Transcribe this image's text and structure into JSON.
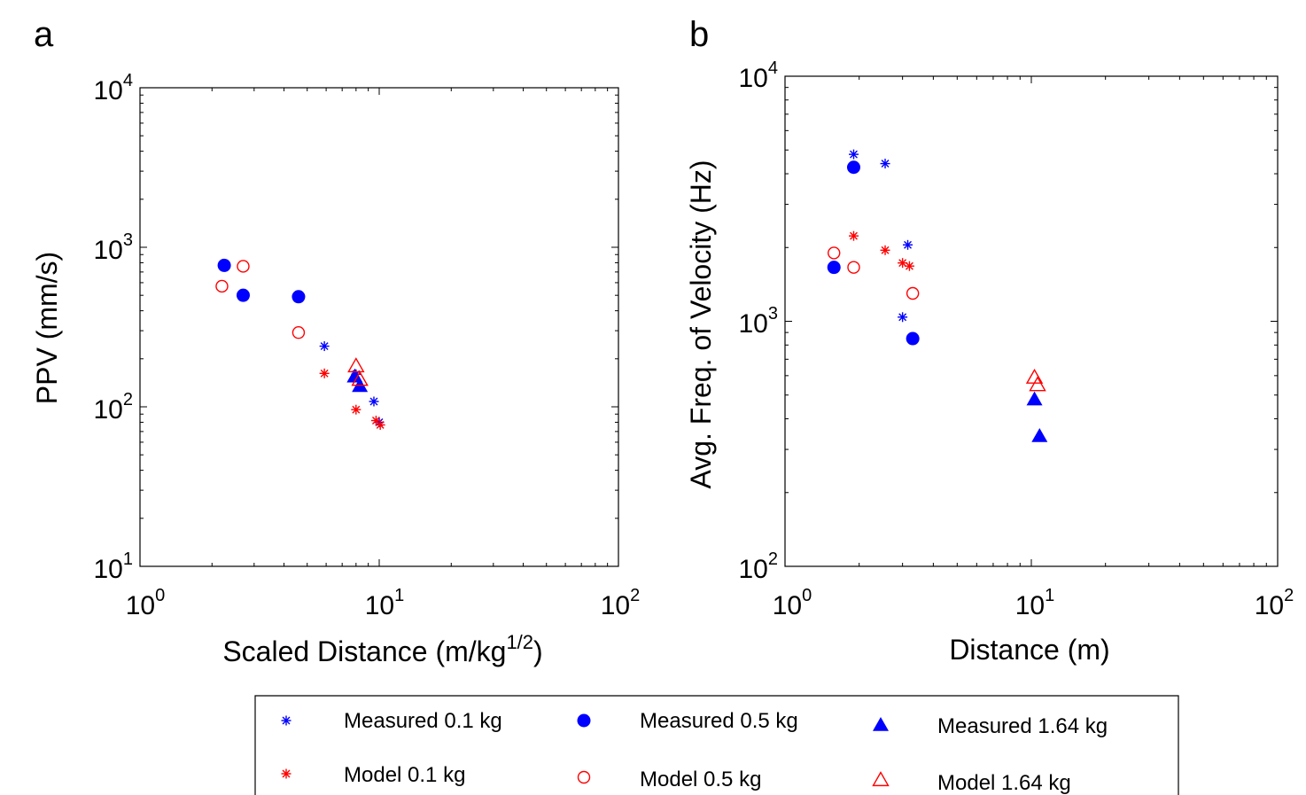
{
  "legend": {
    "items": [
      {
        "label": "Measured 0.1 kg",
        "marker": "star",
        "color": "#0000ff"
      },
      {
        "label": "Measured 0.5 kg",
        "marker": "circle-filled",
        "color": "#0000ff"
      },
      {
        "label": "Measured 1.64 kg",
        "marker": "triangle-filled",
        "color": "#0000ff"
      },
      {
        "label": "Model 0.1 kg",
        "marker": "star",
        "color": "#ff0000"
      },
      {
        "label": "Model 0.5 kg",
        "marker": "circle-open",
        "color": "#ff0000"
      },
      {
        "label": "Model 1.64 kg",
        "marker": "triangle-open",
        "color": "#ff0000"
      }
    ]
  },
  "chart_data": [
    {
      "panel_label": "a",
      "type": "scatter",
      "xlabel": "Scaled Distance (m/kg",
      "xlabel_sup": "1/2",
      "xlabel_end": ")",
      "ylabel": "PPV (mm/s)",
      "xscale": "log",
      "yscale": "log",
      "xlim": [
        1,
        100
      ],
      "ylim": [
        10,
        10000
      ],
      "xticks": [
        {
          "base": "10",
          "exp": "0"
        },
        {
          "base": "10",
          "exp": "1"
        },
        {
          "base": "10",
          "exp": "2"
        }
      ],
      "yticks": [
        {
          "base": "10",
          "exp": "1"
        },
        {
          "base": "10",
          "exp": "2"
        },
        {
          "base": "10",
          "exp": "3"
        },
        {
          "base": "10",
          "exp": "4"
        }
      ],
      "grid": false,
      "series": [
        {
          "name": "Measured 0.1 kg",
          "x": [
            5.9,
            8.0,
            9.5,
            10.0
          ],
          "y": [
            240,
            160,
            108,
            80
          ]
        },
        {
          "name": "Measured 0.5 kg",
          "x": [
            2.25,
            2.7,
            4.6
          ],
          "y": [
            770,
            500,
            490
          ]
        },
        {
          "name": "Measured 1.64 kg",
          "x": [
            7.9,
            8.3
          ],
          "y": [
            155,
            135
          ]
        },
        {
          "name": "Model 0.1 kg",
          "x": [
            5.9,
            8.0,
            9.7,
            10.1
          ],
          "y": [
            162,
            96,
            82,
            77
          ]
        },
        {
          "name": "Model 0.5 kg",
          "x": [
            2.2,
            2.7,
            4.6
          ],
          "y": [
            570,
            760,
            292
          ]
        },
        {
          "name": "Model 1.64 kg",
          "x": [
            8.0,
            8.3
          ],
          "y": [
            180,
            148
          ]
        }
      ]
    },
    {
      "panel_label": "b",
      "type": "scatter",
      "xlabel": "Distance (m)",
      "ylabel": "Avg. Freq. of Velocity (Hz)",
      "xscale": "log",
      "yscale": "log",
      "xlim": [
        1,
        100
      ],
      "ylim": [
        100,
        10000
      ],
      "xticks": [
        {
          "base": "10",
          "exp": "0"
        },
        {
          "base": "10",
          "exp": "1"
        },
        {
          "base": "10",
          "exp": "2"
        }
      ],
      "yticks": [
        {
          "base": "10",
          "exp": "2"
        },
        {
          "base": "10",
          "exp": "3"
        },
        {
          "base": "10",
          "exp": "4"
        }
      ],
      "grid": false,
      "series": [
        {
          "name": "Measured 0.1 kg",
          "x": [
            1.9,
            2.55,
            3.15,
            3.0
          ],
          "y": [
            4800,
            4400,
            2050,
            1040
          ]
        },
        {
          "name": "Measured 0.5 kg",
          "x": [
            1.9,
            1.58,
            3.3
          ],
          "y": [
            4250,
            1660,
            850
          ]
        },
        {
          "name": "Measured 1.64 kg",
          "x": [
            10.3,
            10.8
          ],
          "y": [
            480,
            340
          ]
        },
        {
          "name": "Model 0.1 kg",
          "x": [
            1.9,
            2.55,
            3.0,
            3.2
          ],
          "y": [
            2230,
            1950,
            1730,
            1680
          ]
        },
        {
          "name": "Model 0.5 kg",
          "x": [
            1.58,
            1.9,
            3.3
          ],
          "y": [
            1900,
            1660,
            1300
          ]
        },
        {
          "name": "Model 1.64 kg",
          "x": [
            10.3,
            10.6
          ],
          "y": [
            590,
            550
          ]
        }
      ]
    }
  ]
}
